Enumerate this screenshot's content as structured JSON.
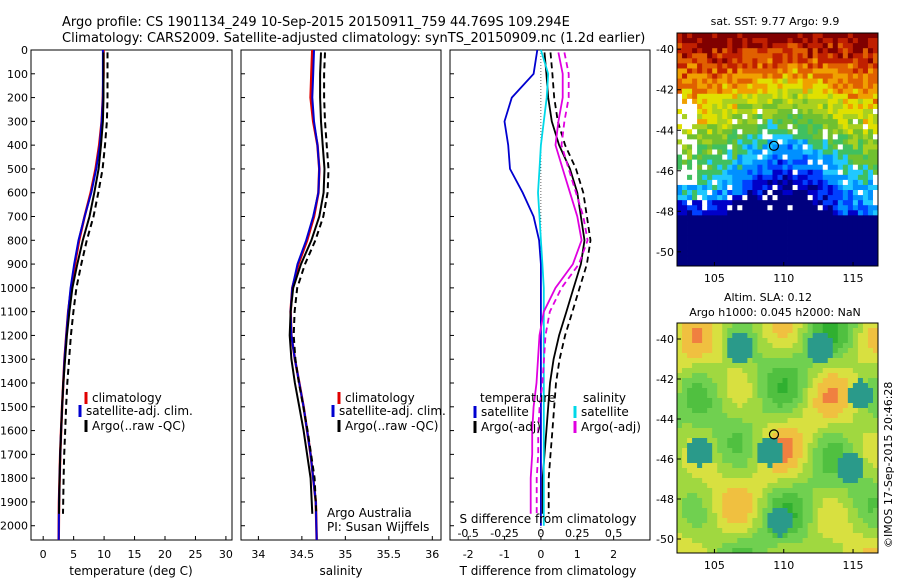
{
  "header": {
    "line1": "Argo profile: CS 1901134_249 10-Sep-2015 20150911_759 44.769S 109.294E",
    "line2": "Climatology: CARS2009. Satellite-adjusted climatology: synTS_20150909.nc (1.2d earlier)"
  },
  "colors": {
    "climatology": "#e00000",
    "satellite": "#0000d0",
    "argo": "#000000",
    "sat_salinity": "#00d8e8",
    "argo_salinity": "#e000e0"
  },
  "chart_data": [
    {
      "type": "line",
      "id": "temperature",
      "xlabel": "temperature (deg C)",
      "ylabel": "",
      "xlim": [
        -2,
        31
      ],
      "ylim": [
        2060,
        0
      ],
      "xticks": [
        "0",
        "5",
        "10",
        "15",
        "20",
        "25",
        "30"
      ],
      "xtick_values": [
        0,
        5,
        10,
        15,
        20,
        25,
        30
      ],
      "yticks": [
        "0",
        "100",
        "200",
        "300",
        "400",
        "500",
        "600",
        "700",
        "800",
        "900",
        "1000",
        "1100",
        "1200",
        "1300",
        "1400",
        "1500",
        "1600",
        "1700",
        "1800",
        "1900",
        "2000"
      ],
      "ytick_values": [
        0,
        100,
        200,
        300,
        400,
        500,
        600,
        700,
        800,
        900,
        1000,
        1100,
        1200,
        1300,
        1400,
        1500,
        1600,
        1700,
        1800,
        1900,
        2000
      ],
      "legend": [
        "climatology",
        "satellite-adj. clim.",
        "Argo(..raw -QC)"
      ],
      "series": [
        {
          "name": "climatology",
          "x": [
            9.9,
            9.9,
            9.8,
            9.6,
            9.2,
            8.6,
            7.8,
            6.8,
            5.9,
            5.2,
            4.6,
            4.1,
            3.8,
            3.5,
            3.3,
            3.1,
            2.95,
            2.8,
            2.7,
            2.6,
            2.55
          ],
          "y": [
            0,
            100,
            200,
            300,
            400,
            500,
            600,
            700,
            800,
            900,
            1000,
            1100,
            1200,
            1300,
            1400,
            1500,
            1600,
            1700,
            1800,
            1900,
            2060
          ]
        },
        {
          "name": "satellite-adj. clim.",
          "x": [
            9.8,
            9.8,
            9.8,
            9.6,
            9.3,
            8.7,
            7.9,
            6.8,
            5.8,
            5.1,
            4.5,
            4.1,
            3.8,
            3.5,
            3.3,
            3.1,
            2.95,
            2.8,
            2.7,
            2.6,
            2.55
          ],
          "y": [
            0,
            100,
            200,
            300,
            400,
            500,
            600,
            700,
            800,
            900,
            1000,
            1100,
            1200,
            1300,
            1400,
            1500,
            1600,
            1700,
            1800,
            1900,
            2060
          ]
        },
        {
          "name": "Argo(..raw -QC)",
          "x": [
            9.9,
            9.9,
            9.9,
            9.8,
            9.5,
            9.1,
            8.4,
            7.6,
            6.5,
            5.6,
            4.8,
            4.3,
            3.9,
            3.6,
            3.3,
            3.1,
            2.95,
            2.8,
            2.7,
            2.6
          ],
          "y": [
            10,
            100,
            200,
            300,
            400,
            500,
            600,
            700,
            800,
            900,
            1000,
            1100,
            1200,
            1300,
            1400,
            1500,
            1600,
            1700,
            1800,
            1950
          ]
        }
      ]
    },
    {
      "type": "line",
      "id": "salinity",
      "xlabel": "salinity",
      "xlim": [
        33.8,
        36.1
      ],
      "ylim": [
        2060,
        0
      ],
      "xticks": [
        "34",
        "34.5",
        "35",
        "35.5",
        "36"
      ],
      "xtick_values": [
        34,
        34.5,
        35,
        35.5,
        36
      ],
      "legend": [
        "climatology",
        "satellite-adj. clim.",
        "Argo(..raw -QC)"
      ],
      "annotation": [
        "Argo Australia",
        "PI: Susan Wijffels"
      ],
      "series": [
        {
          "name": "climatology",
          "x": [
            34.62,
            34.61,
            34.6,
            34.63,
            34.68,
            34.7,
            34.69,
            34.64,
            34.56,
            34.46,
            34.39,
            34.37,
            34.38,
            34.42,
            34.47,
            34.52,
            34.56,
            34.6,
            34.63,
            34.66,
            34.67
          ],
          "y": [
            0,
            100,
            200,
            300,
            400,
            500,
            600,
            700,
            800,
            900,
            1000,
            1100,
            1200,
            1300,
            1400,
            1500,
            1600,
            1700,
            1800,
            1900,
            2060
          ]
        },
        {
          "name": "satellite-adj. clim.",
          "x": [
            34.64,
            34.63,
            34.62,
            34.64,
            34.68,
            34.7,
            34.69,
            34.63,
            34.55,
            34.45,
            34.39,
            34.37,
            34.38,
            34.42,
            34.47,
            34.52,
            34.56,
            34.6,
            34.63,
            34.66,
            34.67
          ],
          "y": [
            0,
            100,
            200,
            300,
            400,
            500,
            600,
            700,
            800,
            900,
            1000,
            1100,
            1200,
            1300,
            1400,
            1500,
            1600,
            1700,
            1800,
            1900,
            2060
          ]
        },
        {
          "name": "Argo(..raw -QC)",
          "x": [
            34.72,
            34.71,
            34.71,
            34.72,
            34.74,
            34.76,
            34.75,
            34.7,
            34.61,
            34.49,
            34.4,
            34.37,
            34.36,
            34.38,
            34.42,
            34.47,
            34.52,
            34.56,
            34.6,
            34.62
          ],
          "y": [
            10,
            100,
            200,
            300,
            400,
            500,
            600,
            700,
            800,
            900,
            1000,
            1100,
            1200,
            1300,
            1400,
            1500,
            1600,
            1700,
            1800,
            1950
          ]
        }
      ]
    },
    {
      "type": "line",
      "id": "difference",
      "xlabel": "T difference from climatology",
      "xlabel_top": "S difference from climatology",
      "xlim": [
        -2.5,
        3
      ],
      "ylim": [
        2060,
        0
      ],
      "xticks": [
        "-2",
        "-1",
        "0",
        "1",
        "2"
      ],
      "xtick_values": [
        -2,
        -1,
        0,
        1,
        2
      ],
      "sticks": [
        "-0.5",
        "-0.25",
        "0",
        "0.25",
        "0.5"
      ],
      "stick_values": [
        -0.5,
        -0.25,
        0,
        0.25,
        0.5
      ],
      "legend_left_title": "temperature",
      "legend_right_title": "salinity",
      "legend": [
        "satellite",
        "Argo(-adj)",
        "satellite",
        "Argo(-adj)"
      ],
      "series": [
        {
          "name": "satellite",
          "quantity": "temperature",
          "x": [
            -0.1,
            -0.2,
            -0.8,
            -1.0,
            -0.9,
            -0.85,
            -0.5,
            -0.2,
            -0.05,
            0,
            0,
            0,
            0,
            0,
            0,
            0,
            0,
            0,
            0,
            0
          ],
          "y": [
            0,
            100,
            200,
            300,
            400,
            500,
            600,
            700,
            800,
            900,
            1000,
            1100,
            1200,
            1300,
            1400,
            1500,
            1600,
            1700,
            1800,
            2000
          ]
        },
        {
          "name": "Argo(-adj)",
          "quantity": "temperature",
          "x": [
            0.1,
            0.15,
            0.2,
            0.3,
            0.5,
            0.8,
            1.0,
            1.1,
            1.2,
            1.1,
            0.9,
            0.7,
            0.5,
            0.35,
            0.25,
            0.2,
            0.15,
            0.1,
            0.05,
            0.05
          ],
          "y": [
            10,
            100,
            200,
            300,
            400,
            500,
            600,
            700,
            800,
            900,
            1000,
            1100,
            1200,
            1300,
            1400,
            1500,
            1600,
            1700,
            1800,
            1950
          ]
        },
        {
          "name": "satellite",
          "quantity": "salinity",
          "x": [
            0.0,
            0.05,
            0.04,
            0.02,
            0.0,
            -0.01,
            -0.02,
            -0.01,
            0.0,
            0.01,
            0.02,
            0.02,
            0.02,
            0.02,
            0.02,
            0.02,
            0.02,
            0.02,
            0.02,
            0.02
          ],
          "y": [
            0,
            100,
            200,
            300,
            400,
            500,
            600,
            700,
            800,
            900,
            1000,
            1100,
            1200,
            1300,
            1400,
            1500,
            1600,
            1700,
            1800,
            2000
          ]
        },
        {
          "name": "Argo(-adj)",
          "quantity": "salinity",
          "x": [
            0.12,
            0.15,
            0.15,
            0.12,
            0.1,
            0.15,
            0.2,
            0.25,
            0.28,
            0.22,
            0.1,
            0.02,
            -0.01,
            -0.02,
            -0.03,
            -0.05,
            -0.06,
            -0.06,
            -0.07,
            -0.07
          ],
          "y": [
            10,
            100,
            200,
            300,
            400,
            500,
            600,
            700,
            800,
            900,
            1000,
            1100,
            1200,
            1300,
            1400,
            1500,
            1600,
            1700,
            1800,
            1950
          ]
        }
      ]
    },
    {
      "type": "heatmap",
      "id": "sst-map",
      "title": "sat. SST: 9.77 Argo: 9.9",
      "xticks": [
        "105",
        "110",
        "115"
      ],
      "xtick_values": [
        105,
        110,
        115
      ],
      "yticks": [
        "-40",
        "-42",
        "-44",
        "-46",
        "-48",
        "-50"
      ],
      "ytick_values": [
        -40,
        -42,
        -44,
        -46,
        -48,
        -50
      ],
      "xlim": [
        102.3,
        116.8
      ],
      "ylim": [
        -50.7,
        -39.2
      ],
      "argo_position": [
        109.294,
        -44.769
      ]
    },
    {
      "type": "heatmap",
      "id": "sla-map",
      "title_line1": "Altim. SLA: 0.12",
      "title_line2": "Argo h1000: 0.045 h2000: NaN",
      "xticks": [
        "105",
        "110",
        "115"
      ],
      "xtick_values": [
        105,
        110,
        115
      ],
      "yticks": [
        "-40",
        "-42",
        "-44",
        "-46",
        "-48",
        "-50"
      ],
      "ytick_values": [
        -40,
        -42,
        -44,
        -46,
        -48,
        -50
      ],
      "xlim": [
        102.3,
        116.8
      ],
      "ylim": [
        -50.7,
        -39.2
      ],
      "argo_position": [
        109.294,
        -44.769
      ]
    }
  ],
  "credit": "©IMOS 17-Sep-2015 20:46:28"
}
